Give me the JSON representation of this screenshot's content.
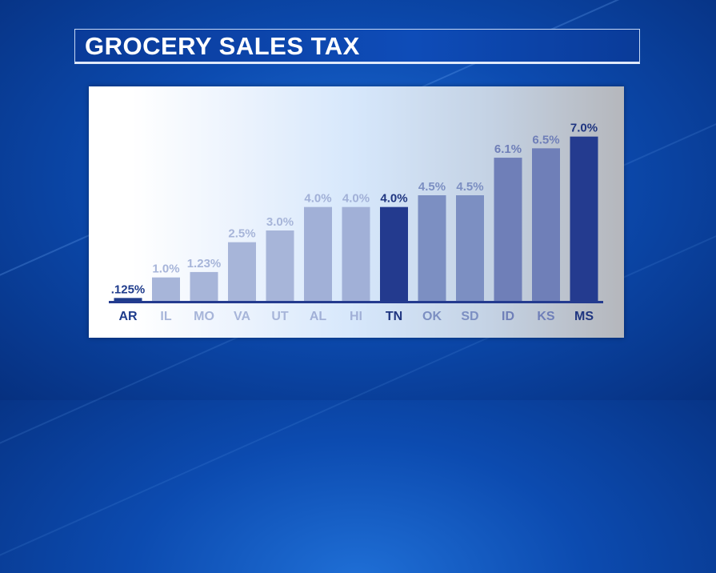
{
  "title": "GROCERY SALES TAX",
  "chart_data": {
    "type": "bar",
    "title": "GROCERY SALES TAX",
    "xlabel": "",
    "ylabel": "",
    "ylim": [
      0,
      7.5
    ],
    "grid": false,
    "categories": [
      "AR",
      "IL",
      "MO",
      "VA",
      "UT",
      "AL",
      "HI",
      "TN",
      "OK",
      "SD",
      "ID",
      "KS",
      "MS"
    ],
    "values": [
      0.125,
      1.0,
      1.23,
      2.5,
      3.0,
      4.0,
      4.0,
      4.0,
      4.5,
      4.5,
      6.1,
      6.5,
      7.0
    ],
    "value_labels": [
      ".125%",
      "1.0%",
      "1.23%",
      "2.5%",
      "3.0%",
      "4.0%",
      "4.0%",
      "4.0%",
      "4.5%",
      "4.5%",
      "6.1%",
      "6.5%",
      "7.0%"
    ],
    "bar_colors": [
      "#1f3c8c",
      "#a7b5d9",
      "#a7b5d9",
      "#a7b5d9",
      "#a7b5d9",
      "#a1b0d7",
      "#a1b0d7",
      "#233a8e",
      "#7c8fc2",
      "#7c8fc2",
      "#6f7fb8",
      "#6f7fb8",
      "#243b8f"
    ],
    "label_colors": [
      "#1f3c8c",
      "#a7b5d9",
      "#a7b5d9",
      "#a7b5d9",
      "#a7b5d9",
      "#a1b0d7",
      "#a1b0d7",
      "#1f3580",
      "#7c8fc2",
      "#7c8fc2",
      "#6f7fb8",
      "#6f7fb8",
      "#1f3580"
    ],
    "axis_color": "#243b8f"
  }
}
